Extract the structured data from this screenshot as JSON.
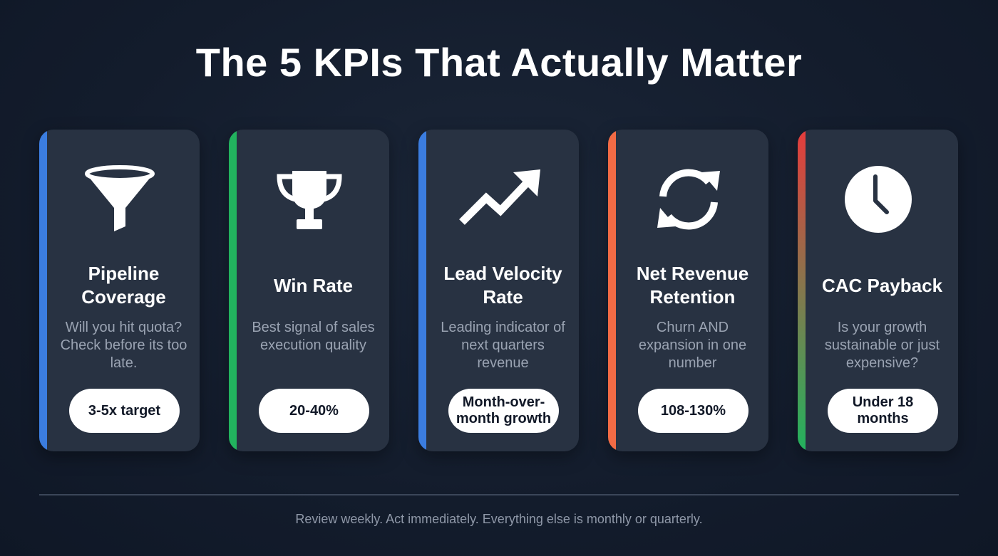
{
  "title": "The 5 KPIs That Actually Matter",
  "cards": [
    {
      "name": "Pipeline Coverage",
      "description": "Will you hit quota? Check before its too late.",
      "target": "3-5x target",
      "icon": "funnel-icon",
      "accent": "#3b7de0"
    },
    {
      "name": "Win Rate",
      "description": "Best signal of sales execution quality",
      "target": "20-40%",
      "icon": "trophy-icon",
      "accent": "#22b35e"
    },
    {
      "name": "Lead Velocity Rate",
      "description": "Leading indicator of next quarters revenue",
      "target": "Month-over-month growth",
      "icon": "trending-up-icon",
      "accent": "#3b7de0"
    },
    {
      "name": "Net Revenue Retention",
      "description": "Churn AND expansion in one number",
      "target": "108-130%",
      "icon": "refresh-icon",
      "accent": "#f26b45"
    },
    {
      "name": "CAC Payback",
      "description": "Is your growth sustainable or just expensive?",
      "target": "Under 18 months",
      "icon": "clock-icon",
      "accent": "linear-gradient(#e63c3c,#22b35e)"
    }
  ],
  "footer": "Review weekly. Act immediately. Everything else is monthly or quarterly."
}
